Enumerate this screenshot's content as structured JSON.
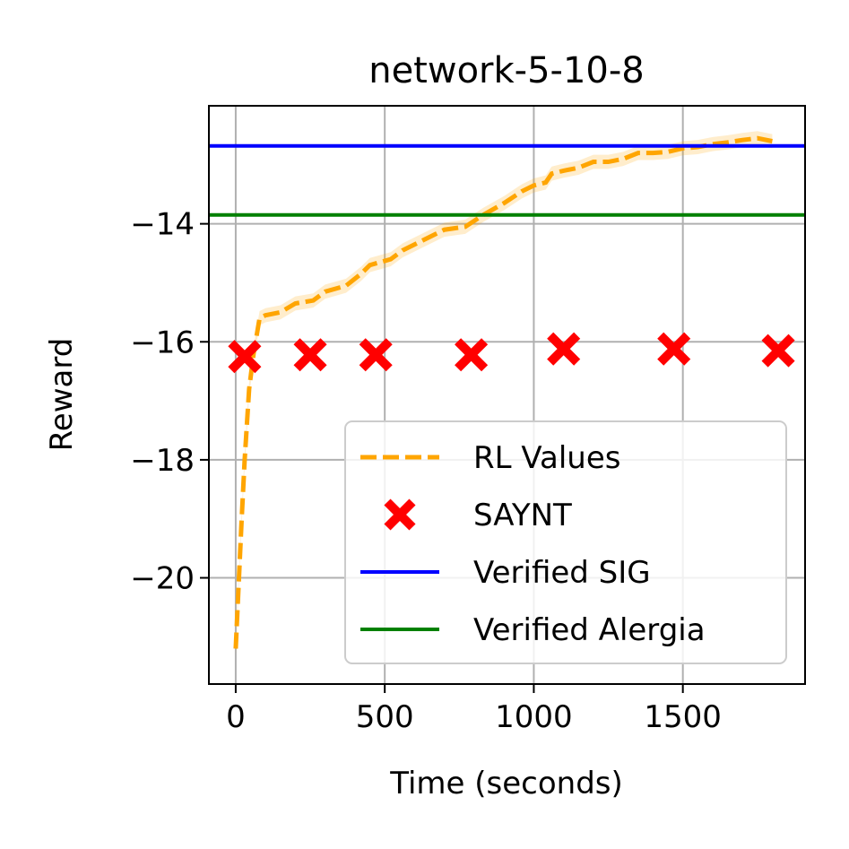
{
  "chart_data": {
    "type": "line",
    "title": "network-5-10-8",
    "xlabel": "Time (seconds)",
    "ylabel": "Reward",
    "xlim": [
      -90,
      1910
    ],
    "ylim": [
      -21.8,
      -12.0
    ],
    "xticks": [
      0,
      500,
      1000,
      1500
    ],
    "yticks": [
      -20,
      -18,
      -16,
      -14
    ],
    "grid": true,
    "legend": {
      "placement": "lower-right"
    },
    "series": [
      {
        "name": "RL Values",
        "kind": "line-dashed",
        "color": "#FFA500",
        "band": 0.12,
        "x": [
          0,
          10,
          20,
          30,
          45,
          60,
          80,
          100,
          150,
          200,
          260,
          300,
          370,
          420,
          450,
          520,
          560,
          620,
          680,
          700,
          770,
          830,
          900,
          960,
          1000,
          1040,
          1060,
          1100,
          1150,
          1200,
          1250,
          1300,
          1350,
          1400,
          1450,
          1500,
          1550,
          1600,
          1650,
          1700,
          1750,
          1800
        ],
        "y": [
          -21.2,
          -20.1,
          -19.0,
          -18.0,
          -16.8,
          -16.2,
          -15.6,
          -15.55,
          -15.5,
          -15.35,
          -15.3,
          -15.15,
          -15.05,
          -14.85,
          -14.7,
          -14.6,
          -14.45,
          -14.3,
          -14.15,
          -14.1,
          -14.05,
          -13.85,
          -13.65,
          -13.45,
          -13.35,
          -13.3,
          -13.15,
          -13.1,
          -13.05,
          -12.95,
          -12.95,
          -12.9,
          -12.8,
          -12.8,
          -12.78,
          -12.72,
          -12.7,
          -12.65,
          -12.62,
          -12.58,
          -12.55,
          -12.6
        ]
      },
      {
        "name": "SAYNT",
        "kind": "scatter-x",
        "color": "#FF0000",
        "x": [
          30,
          250,
          470,
          790,
          1100,
          1470,
          1820
        ],
        "y": [
          -16.25,
          -16.22,
          -16.22,
          -16.22,
          -16.12,
          -16.12,
          -16.15
        ]
      },
      {
        "name": "Verified SIG",
        "kind": "hline",
        "color": "#0000FF",
        "y": -12.68
      },
      {
        "name": "Verified Alergia",
        "kind": "hline",
        "color": "#008000",
        "y": -13.85
      }
    ]
  }
}
